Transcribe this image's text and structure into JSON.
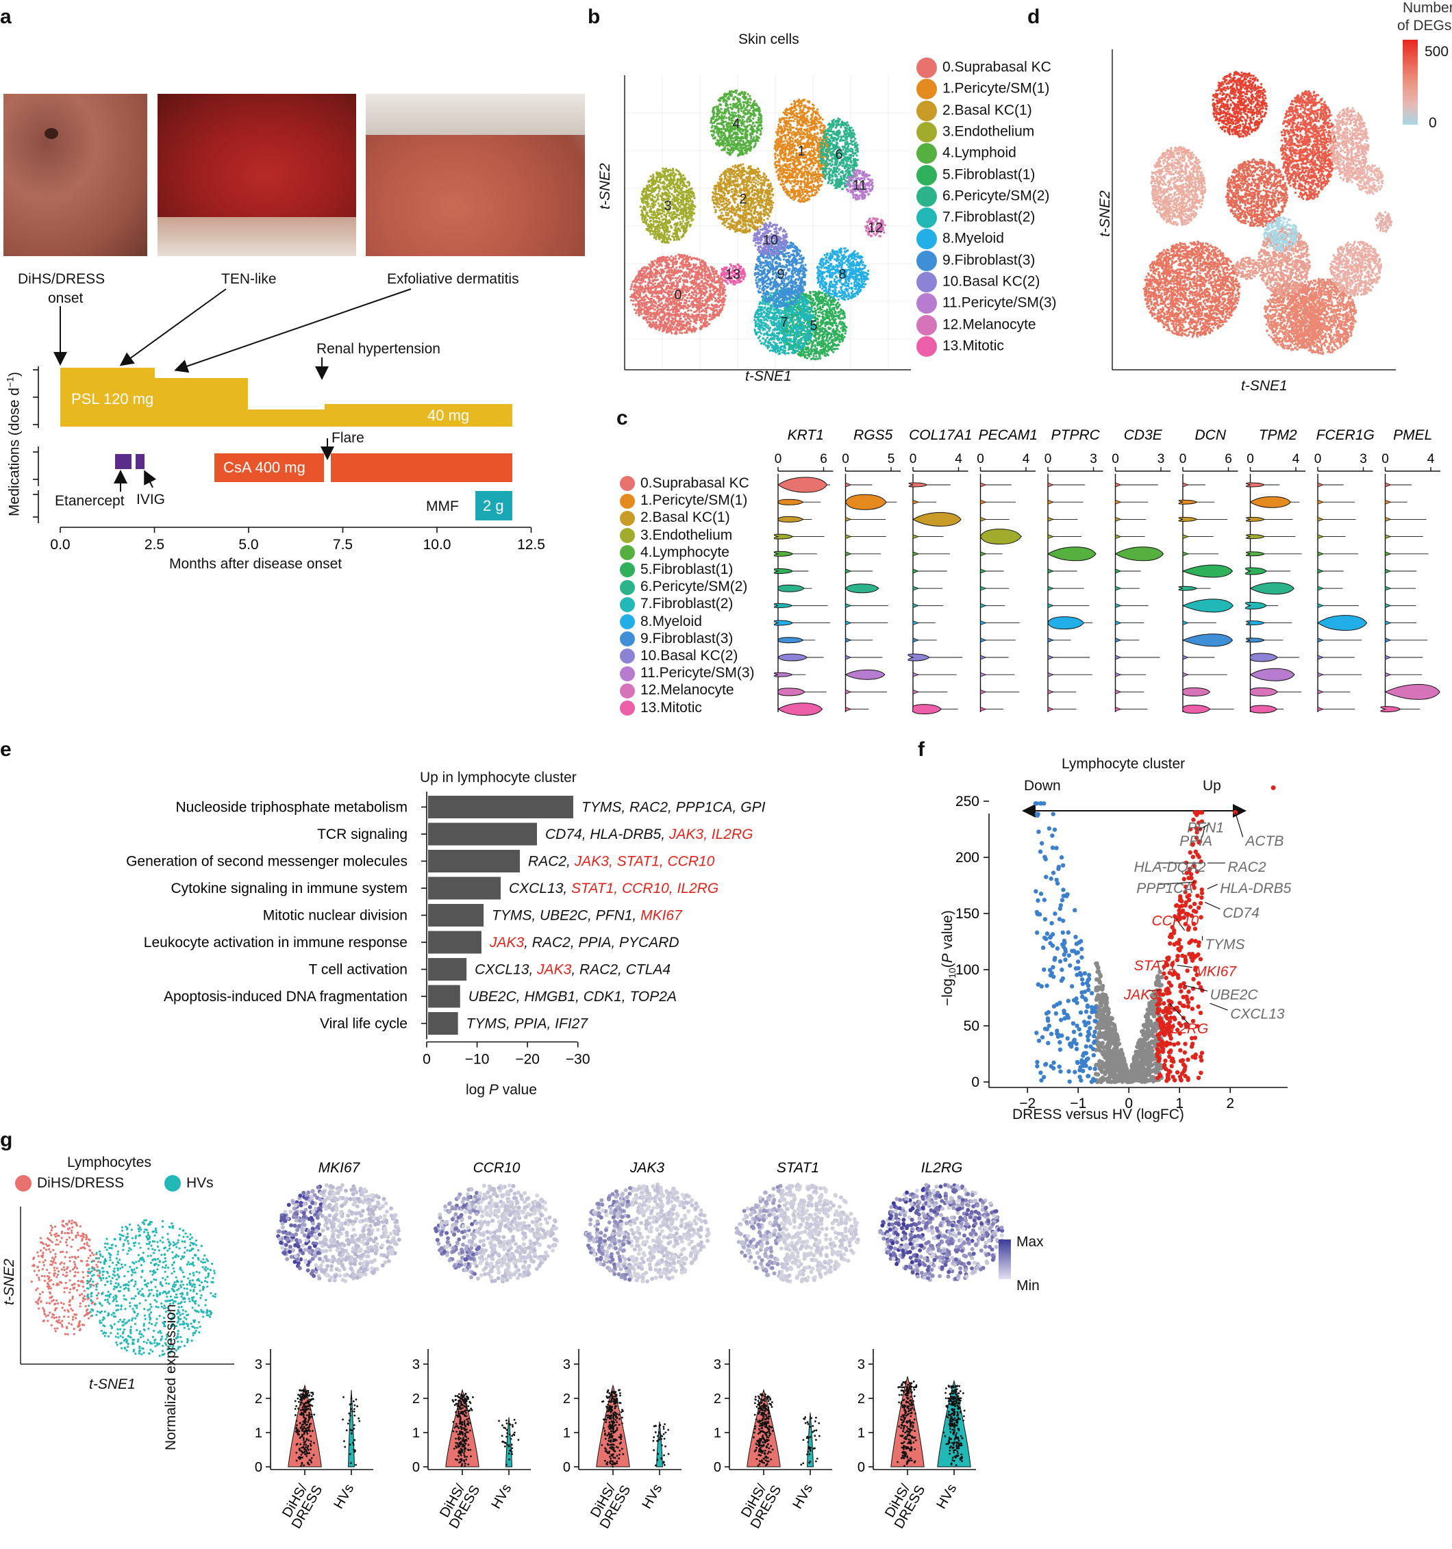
{
  "panel_labels": {
    "a": "a",
    "b": "b",
    "c": "c",
    "d": "d",
    "e": "e",
    "f": "f",
    "g": "g"
  },
  "panel_a": {
    "photos": [
      {
        "caption": "DiHS/DRESS onset"
      },
      {
        "caption": "TEN-like"
      },
      {
        "caption": "Exfoliative dermatitis"
      }
    ],
    "caption_dress": "DiHS/DRESS",
    "caption_onset": "onset",
    "caption_ten": "TEN-like",
    "caption_exf": "Exfoliative dermatitis",
    "renal": "Renal hypertension",
    "psl_label": "PSL 120 mg",
    "psl_end": "40 mg",
    "flare": "Flare",
    "csa": "CsA 400 mg",
    "etanercept": "Etanercept",
    "ivig": "IVIG",
    "mmf": "MMF",
    "mmf_dose": "2 g",
    "ylabel": "Medications (dose d",
    "ylabel_sup": "−1",
    "ylabel_end": ")",
    "xlabel": "Months after disease onset",
    "xticks": [
      "0.0",
      "2.5",
      "5.0",
      "7.5",
      "10.0",
      "12.5"
    ],
    "colors": {
      "psl": "#e7b81f",
      "csa": "#e8552b",
      "etanercept": "#5a2d8a",
      "mmf": "#1aa8b4"
    }
  },
  "panel_b": {
    "title": "Skin cells",
    "xlabel": "t-SNE1",
    "ylabel": "t-SNE2",
    "clusters": [
      {
        "label": "0.Suprabasal KC",
        "color": "#e8726d"
      },
      {
        "label": "1.Pericyte/SM(1)",
        "color": "#e58a1e"
      },
      {
        "label": "2.Basal KC(1)",
        "color": "#c89a26"
      },
      {
        "label": "3.Endothelium",
        "color": "#a2ac2c"
      },
      {
        "label": "4.Lymphoid",
        "color": "#55b040"
      },
      {
        "label": "5.Fibroblast(1)",
        "color": "#2fb05a"
      },
      {
        "label": "6.Pericyte/SM(2)",
        "color": "#2cb38c"
      },
      {
        "label": "7.Fibroblast(2)",
        "color": "#22b8b8"
      },
      {
        "label": "8.Myeloid",
        "color": "#22aee6"
      },
      {
        "label": "9.Fibroblast(3)",
        "color": "#3f8fd6"
      },
      {
        "label": "10.Basal KC(2)",
        "color": "#8c82d6"
      },
      {
        "label": "11.Pericyte/SM(3)",
        "color": "#b77bcf"
      },
      {
        "label": "12.Melanocyte",
        "color": "#d774b9"
      },
      {
        "label": "13.Mitotic",
        "color": "#ec5fa8"
      }
    ],
    "cluster_numbers": [
      "0",
      "1",
      "2",
      "3",
      "4",
      "5",
      "6",
      "7",
      "8",
      "9",
      "10",
      "11",
      "12",
      "13"
    ]
  },
  "panel_c": {
    "genes": [
      {
        "name": "KRT1",
        "ticks": [
          "0",
          "6"
        ]
      },
      {
        "name": "RGS5",
        "ticks": [
          "0",
          "5"
        ]
      },
      {
        "name": "COL17A1",
        "ticks": [
          "0",
          "4"
        ]
      },
      {
        "name": "PECAM1",
        "ticks": [
          "0",
          "4"
        ]
      },
      {
        "name": "PTPRC",
        "ticks": [
          "0",
          "3"
        ]
      },
      {
        "name": "CD3E",
        "ticks": [
          "0",
          "3"
        ]
      },
      {
        "name": "DCN",
        "ticks": [
          "0",
          "6"
        ]
      },
      {
        "name": "TPM2",
        "ticks": [
          "0",
          "4"
        ]
      },
      {
        "name": "FCER1G",
        "ticks": [
          "0",
          "3"
        ]
      },
      {
        "name": "PMEL",
        "ticks": [
          "0",
          "4"
        ]
      }
    ],
    "rows": [
      "0.Suprabasal KC",
      "1.Pericyte/SM(1)",
      "2.Basal KC(1)",
      "3.Endothelium",
      "4.Lymphocyte",
      "5.Fibroblast(1)",
      "6.Pericyte/SM(2)",
      "7.Fibroblast(2)",
      "8.Myeloid",
      "9.Fibroblast(3)",
      "10.Basal KC(2)",
      "11.Pericyte/SM(3)",
      "12.Melanocyte",
      "13.Mitotic"
    ]
  },
  "panel_d": {
    "legend_title_1": "Number",
    "legend_title_2": "of DEGs",
    "legend_max": "500",
    "legend_min": "0",
    "xlabel": "t-SNE1",
    "ylabel": "t-SNE2"
  },
  "chart_data": [
    {
      "type": "bar",
      "panel": "e",
      "title": "Up in lymphocyte cluster",
      "xlabel": "log P value",
      "xticks": [
        "0",
        "−10",
        "−20",
        "−30"
      ],
      "xlim": [
        0,
        -35
      ],
      "categories": [
        "Nucleoside triphosphate metabolism",
        "TCR signaling",
        "Generation of second messenger molecules",
        "Cytokine signaling in immune system",
        "Mitotic nuclear division",
        "Leukocyte activation in immune response",
        "T cell activation",
        "Apoptosis-induced DNA fragmentation",
        "Viral life cycle"
      ],
      "values": [
        -34,
        -25.5,
        -21.5,
        -17,
        -13,
        -12.5,
        -9,
        -7.5,
        -7
      ],
      "gene_lists": [
        [
          {
            "t": "TYMS, RAC2, PPP1CA, GPI",
            "r": false
          }
        ],
        [
          {
            "t": "CD74, HLA-DRB5, ",
            "r": false
          },
          {
            "t": "JAK3, IL2RG",
            "r": true
          }
        ],
        [
          {
            "t": "RAC2, ",
            "r": false
          },
          {
            "t": "JAK3, STAT1, CCR10",
            "r": true
          }
        ],
        [
          {
            "t": "CXCL13, ",
            "r": false
          },
          {
            "t": "STAT1, CCR10, IL2RG",
            "r": true
          }
        ],
        [
          {
            "t": "TYMS, UBE2C, PFN1, ",
            "r": false
          },
          {
            "t": "MKI67",
            "r": true
          }
        ],
        [
          {
            "t": "JAK3",
            "r": true
          },
          {
            "t": ", RAC2, PPIA, PYCARD",
            "r": false
          }
        ],
        [
          {
            "t": "CXCL13, ",
            "r": false
          },
          {
            "t": "JAK3",
            "r": true
          },
          {
            "t": ", RAC2,  CTLA4",
            "r": false
          }
        ],
        [
          {
            "t": "UBE2C, HMGB1, CDK1, TOP2A",
            "r": false
          }
        ],
        [
          {
            "t": "TYMS, PPIA, IFI27",
            "r": false
          }
        ]
      ]
    },
    {
      "type": "scatter",
      "panel": "f",
      "title": "Lymphocyte cluster",
      "xlabel": "DRESS versus HV (logFC)",
      "ylabel": "−log10(P value)",
      "xlim": [
        -2.5,
        2.9
      ],
      "ylim": [
        0,
        265
      ],
      "xticks": [
        "−2",
        "−1",
        "0",
        "1",
        "2"
      ],
      "yticks": [
        "0",
        "50",
        "100",
        "150",
        "200",
        "250"
      ],
      "direction_down": "Down",
      "direction_up": "Up",
      "labeled_genes": [
        {
          "name": "PFN1",
          "x": 1.35,
          "y": 224,
          "red": false
        },
        {
          "name": "PPIA",
          "x": 1.5,
          "y": 228,
          "red": false
        },
        {
          "name": "ACTB",
          "x": 2.1,
          "y": 240,
          "red": false
        },
        {
          "name": "HLA-DQA2",
          "x": 1.45,
          "y": 195,
          "red": false
        },
        {
          "name": "RAC2",
          "x": 1.5,
          "y": 192,
          "red": false
        },
        {
          "name": "PPP1CA",
          "x": 1.3,
          "y": 178,
          "red": false
        },
        {
          "name": "HLA-DRB5",
          "x": 1.55,
          "y": 172,
          "red": false
        },
        {
          "name": "CD74",
          "x": 1.5,
          "y": 160,
          "red": false
        },
        {
          "name": "CCR10",
          "x": 1.1,
          "y": 135,
          "red": true
        },
        {
          "name": "TYMS",
          "x": 1.45,
          "y": 130,
          "red": false
        },
        {
          "name": "STAT1",
          "x": 0.7,
          "y": 108,
          "red": true
        },
        {
          "name": "MKI67",
          "x": 0.95,
          "y": 104,
          "red": true
        },
        {
          "name": "JAK3",
          "x": 0.6,
          "y": 82,
          "red": true
        },
        {
          "name": "UBE2C",
          "x": 1.1,
          "y": 86,
          "red": false
        },
        {
          "name": "CXCL13",
          "x": 1.6,
          "y": 70,
          "red": false
        },
        {
          "name": "IL2RG",
          "x": 0.8,
          "y": 70,
          "red": true
        }
      ],
      "point_colors": {
        "down": "#3c7fcd",
        "ns": "#8a8a8a",
        "up": "#e0241b"
      }
    }
  ],
  "panel_g": {
    "title": "Lymphocytes",
    "legend_dress": "DiHS/DRESS",
    "legend_hv": "HVs",
    "xlabel": "t-SNE1",
    "ylabel": "t-SNE2",
    "genes": [
      "MKI67",
      "CCR10",
      "JAK3",
      "STAT1",
      "IL2RG"
    ],
    "scale_max": "Max",
    "scale_min": "Min",
    "violin_ylabel": "Normalized expression",
    "violin_yticks": [
      "0",
      "1",
      "2",
      "3"
    ],
    "violin_xlabels_1": "DiHS/",
    "violin_xlabels_2": "DRESS",
    "violin_xlabel_hv": "HVs",
    "colors": {
      "dress": "#e8726d",
      "hv": "#22b8b8",
      "max": "#3b3b9a",
      "min": "#e4dfef"
    }
  }
}
